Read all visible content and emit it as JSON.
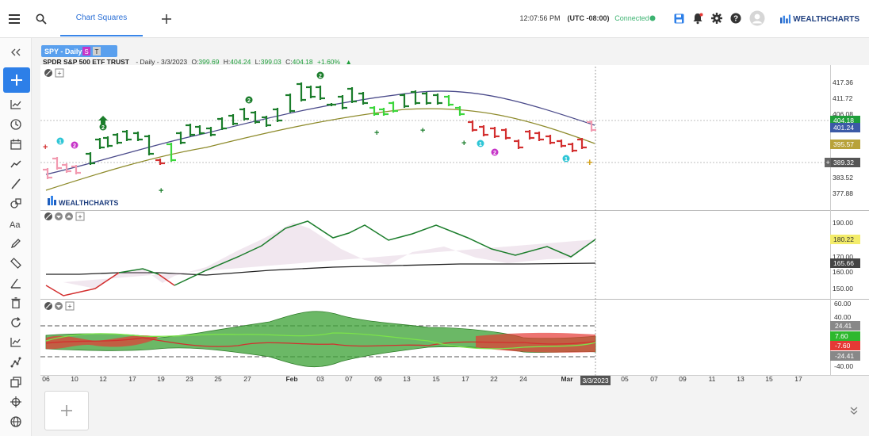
{
  "topbar": {
    "tab_label": "Chart Squares",
    "time": "12:07:56 PM",
    "timezone": "(UTC -08:00)",
    "connection_status": "Connected",
    "brand_name": "WEALTHCHARTS"
  },
  "chart": {
    "symbol_badge": "SPY - Daily",
    "badge_s": "S",
    "badge_t": "T",
    "instrument_name": "SPDR S&P 500 ETF TRUST",
    "info_prefix": "- Daily - 3/3/2023",
    "ohlc": {
      "o_label": "O:",
      "o": "399.69",
      "h_label": "H:",
      "h": "404.24",
      "l_label": "L:",
      "l": "399.03",
      "c_label": "C:",
      "c": "404.18",
      "change": "+1.60%"
    },
    "watermark": "WEALTHCHARTS",
    "price_ticks": [
      "417.36",
      "411.72",
      "406.08",
      "383.52",
      "377.88"
    ],
    "price_labels": [
      {
        "value": "404.18",
        "color": "#1e9e3a"
      },
      {
        "value": "401.24",
        "color": "#3c5aa6"
      },
      {
        "value": "395.57",
        "color": "#b8a23a"
      },
      {
        "value": "389.32",
        "color": "#555555"
      }
    ],
    "ind1_ticks": [
      "190.00",
      "170.00",
      "160.00",
      "150.00"
    ],
    "ind1_labels": [
      {
        "value": "180.22",
        "color": "#f3ec6a"
      },
      {
        "value": "165.66",
        "color": "#444444"
      }
    ],
    "ind2_ticks": [
      "60.00",
      "40.00",
      "-40.00"
    ],
    "ind2_labels": [
      {
        "value": "24.41",
        "color": "#888888"
      },
      {
        "value": "7.60",
        "color": "#2eb82e"
      },
      {
        "value": "-7.60",
        "color": "#e53935"
      },
      {
        "value": "-24.41",
        "color": "#888888"
      }
    ],
    "date_labels": [
      "06",
      "10",
      "12",
      "17",
      "19",
      "23",
      "25",
      "27",
      "Feb",
      "03",
      "07",
      "09",
      "13",
      "15",
      "17",
      "22",
      "24",
      "Mar",
      "05",
      "07",
      "09",
      "11",
      "13",
      "15",
      "17"
    ],
    "current_date": "3/3/2023"
  },
  "markers": [
    "2",
    "2",
    "2",
    "2",
    "1",
    "1",
    "1"
  ]
}
